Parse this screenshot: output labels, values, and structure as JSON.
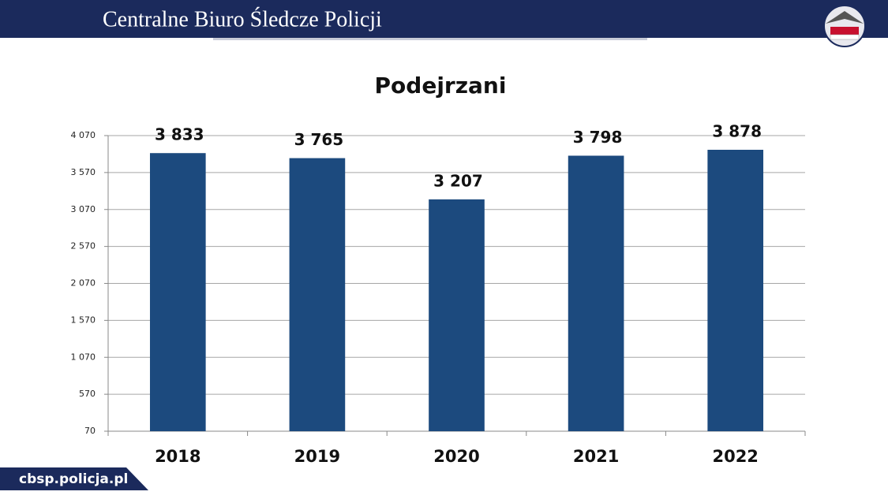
{
  "header": {
    "title": "Centralne Biuro Śledcze Policji"
  },
  "footer": {
    "url": "cbsp.policja.pl"
  },
  "chart_data": {
    "type": "bar",
    "title": "Podejrzani",
    "categories": [
      "2018",
      "2019",
      "2020",
      "2021",
      "2022"
    ],
    "values": [
      3833,
      3765,
      3207,
      3798,
      3878
    ],
    "value_labels": [
      "3 833",
      "3 765",
      "3 207",
      "3 798",
      "3 878"
    ],
    "color": "#1c4a7e",
    "ylim": [
      70,
      4070
    ],
    "yticks": [
      70,
      570,
      {
        "value": 1070,
        "label": "1 070"
      },
      {
        "value": 1570,
        "label": "1 570"
      },
      {
        "value": 2070,
        "label": "2 070"
      },
      {
        "value": 2570,
        "label": "2 570"
      },
      {
        "value": 3070,
        "label": "3 070"
      },
      {
        "value": 3570,
        "label": "3 570"
      },
      {
        "value": 4070,
        "label": "4 070"
      }
    ],
    "grid": true
  }
}
